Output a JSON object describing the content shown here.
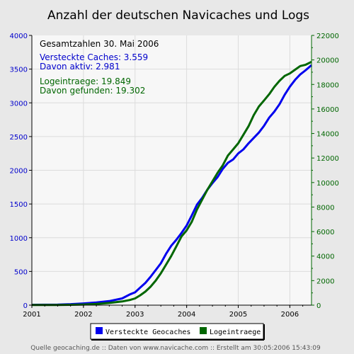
{
  "chart_data": {
    "type": "line",
    "title": "Anzahl der deutschen Navicaches und Logs",
    "x_ticks": [
      "2001",
      "2002",
      "2003",
      "2004",
      "2005",
      "2006"
    ],
    "x_range": [
      2001.0,
      2006.42
    ],
    "y_left_ticks": [
      "0",
      "500",
      "1000",
      "1500",
      "2000",
      "2500",
      "3000",
      "3500",
      "4000"
    ],
    "y_left_range": [
      0,
      4000
    ],
    "y_right_ticks": [
      "0",
      "2000",
      "4000",
      "6000",
      "8000",
      "10000",
      "12000",
      "14000",
      "16000",
      "18000",
      "20000",
      "22000"
    ],
    "y_right_range": [
      0,
      22000
    ],
    "grid": true,
    "legend_position": "bottom",
    "colors": {
      "caches": "#0000ee",
      "logs": "#006600",
      "left_axis": "#0000cc",
      "right_axis": "#006600"
    },
    "annotations": {
      "heading": "Gesamtzahlen 30. Mai 2006",
      "caches_total": "Versteckte Caches: 3.559",
      "caches_active": "Davon aktiv: 2.981",
      "logs_total": "Logeintraege: 19.849",
      "logs_found": "Davon gefunden: 19.302"
    },
    "series": [
      {
        "name": "Versteckte Geocaches",
        "axis": "left",
        "x": [
          2001.0,
          2001.5,
          2001.75,
          2002.0,
          2002.25,
          2002.5,
          2002.75,
          2002.9,
          2003.0,
          2003.1,
          2003.2,
          2003.3,
          2003.4,
          2003.5,
          2003.6,
          2003.7,
          2003.8,
          2003.9,
          2004.0,
          2004.1,
          2004.2,
          2004.3,
          2004.4,
          2004.5,
          2004.6,
          2004.7,
          2004.8,
          2004.9,
          2005.0,
          2005.1,
          2005.2,
          2005.3,
          2005.4,
          2005.5,
          2005.6,
          2005.7,
          2005.8,
          2005.9,
          2006.0,
          2006.1,
          2006.2,
          2006.3,
          2006.42
        ],
        "values": [
          5,
          8,
          15,
          25,
          40,
          60,
          100,
          160,
          190,
          260,
          330,
          420,
          520,
          620,
          760,
          880,
          970,
          1070,
          1180,
          1330,
          1490,
          1590,
          1710,
          1810,
          1900,
          2020,
          2110,
          2160,
          2250,
          2310,
          2400,
          2480,
          2560,
          2660,
          2780,
          2870,
          2980,
          3120,
          3240,
          3340,
          3420,
          3480,
          3559
        ]
      },
      {
        "name": "Logeintraege",
        "axis": "right",
        "x": [
          2001.0,
          2001.5,
          2001.75,
          2002.0,
          2002.25,
          2002.5,
          2002.75,
          2002.9,
          2003.0,
          2003.1,
          2003.2,
          2003.3,
          2003.4,
          2003.5,
          2003.6,
          2003.7,
          2003.8,
          2003.9,
          2004.0,
          2004.1,
          2004.2,
          2004.3,
          2004.4,
          2004.5,
          2004.6,
          2004.7,
          2004.8,
          2004.9,
          2005.0,
          2005.1,
          2005.2,
          2005.3,
          2005.4,
          2005.5,
          2005.6,
          2005.7,
          2005.8,
          2005.9,
          2006.0,
          2006.1,
          2006.2,
          2006.3,
          2006.42
        ],
        "values": [
          10,
          15,
          30,
          50,
          100,
          180,
          300,
          420,
          550,
          800,
          1100,
          1500,
          2000,
          2600,
          3300,
          4000,
          4800,
          5600,
          6100,
          6800,
          7800,
          8600,
          9400,
          10100,
          10800,
          11400,
          12200,
          12700,
          13200,
          13900,
          14600,
          15500,
          16200,
          16700,
          17200,
          17800,
          18300,
          18700,
          18900,
          19200,
          19500,
          19600,
          19849
        ]
      }
    ]
  },
  "footer": "Quelle geocaching.de :: Daten von www.navicache.com :: Erstellt am 30:05:2006 15:43:09"
}
